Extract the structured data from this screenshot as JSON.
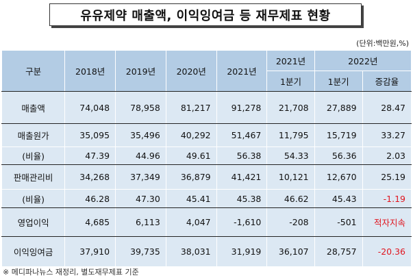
{
  "title": "유유제약 매출액, 이익잉여금 등 재무제표 현황",
  "unit": "(단위:백만원,%)",
  "header": {
    "category": "구분",
    "years": [
      "2018년",
      "2019년",
      "2020년",
      "2021년"
    ],
    "q2021": "2021년",
    "q2022": "2022년",
    "q1_2021": "1분기",
    "q1_2022": "1분기",
    "change": "증감율"
  },
  "rows": [
    {
      "label": "매출액",
      "y2018": "74,048",
      "y2019": "78,958",
      "y2020": "81,217",
      "y2021": "91,278",
      "q2021": "21,708",
      "q2022": "27,889",
      "change": "28.47"
    },
    {
      "label": "매출원가",
      "y2018": "35,095",
      "y2019": "35,496",
      "y2020": "40,292",
      "y2021": "51,467",
      "q2021": "11,795",
      "q2022": "15,719",
      "change": "33.27"
    },
    {
      "label": "(비율)",
      "y2018": "47.39",
      "y2019": "44.96",
      "y2020": "49.61",
      "y2021": "56.38",
      "q2021": "54.33",
      "q2022": "56.36",
      "change": "2.03"
    },
    {
      "label": "판매관리비",
      "y2018": "34,268",
      "y2019": "37,349",
      "y2020": "36,879",
      "y2021": "41,421",
      "q2021": "10,121",
      "q2022": "12,670",
      "change": "25.19"
    },
    {
      "label": "(비율)",
      "y2018": "46.28",
      "y2019": "47.30",
      "y2020": "45.41",
      "y2021": "45.38",
      "q2021": "46.62",
      "q2022": "45.43",
      "change": "-1.19"
    },
    {
      "label": "영업이익",
      "y2018": "4,685",
      "y2019": "6,113",
      "y2020": "4,047",
      "y2021": "-1,610",
      "q2021": "-208",
      "q2022": "-501",
      "change": "적자지속"
    },
    {
      "label": "이익잉여금",
      "y2018": "37,910",
      "y2019": "39,735",
      "y2020": "38,031",
      "y2021": "31,919",
      "q2021": "36,107",
      "q2022": "28,757",
      "change": "-20.36"
    }
  ],
  "footnote": "※ 메디파나뉴스 재정리, 별도재무제표 기준",
  "colors": {
    "header": "#b3cce4",
    "row": "#dce8f3",
    "negative": "#e0141e"
  }
}
